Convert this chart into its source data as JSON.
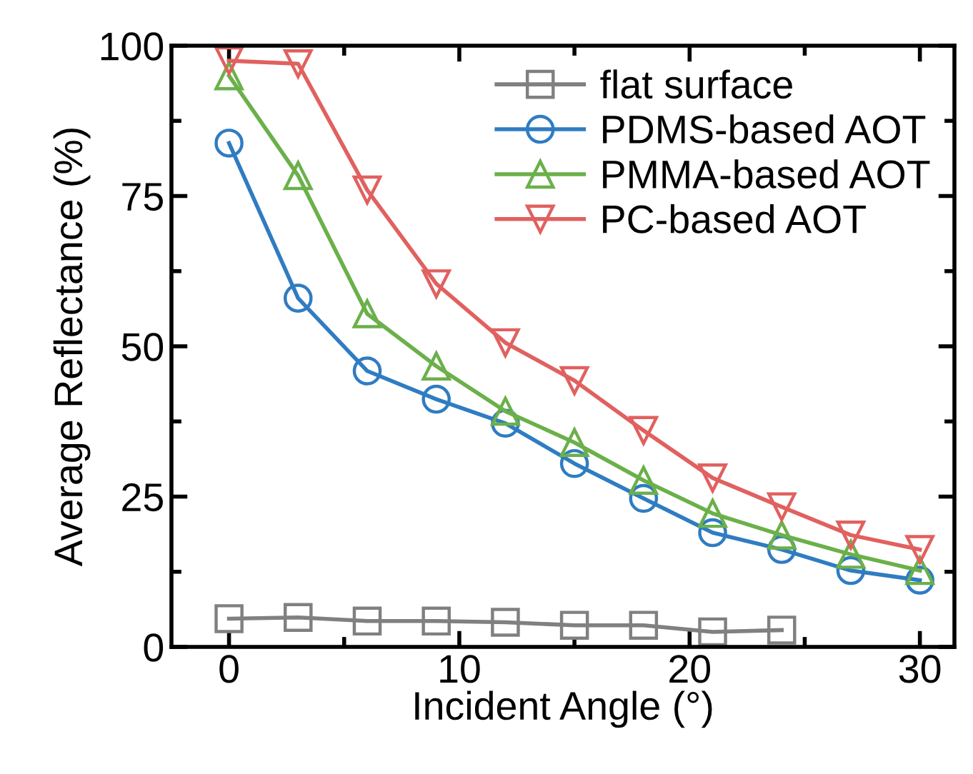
{
  "chart_data": {
    "type": "line",
    "xlabel": "Incident Angle (°)",
    "ylabel": "Average Reflectance (%)",
    "xlim": [
      -2.5,
      31.5
    ],
    "ylim": [
      0,
      100
    ],
    "xticks": [
      0,
      10,
      20,
      30
    ],
    "yticks": [
      0,
      25,
      50,
      75,
      100
    ],
    "grid": false,
    "legend": "top right",
    "line_style": "solid",
    "series": [
      {
        "name": "flat surface",
        "color": "#808080",
        "marker": "square",
        "x": [
          0,
          3,
          6,
          9,
          12,
          15,
          18,
          21,
          24
        ],
        "values": [
          4.7,
          4.9,
          4.3,
          4.3,
          4.1,
          3.6,
          3.6,
          2.5,
          2.8
        ]
      },
      {
        "name": "PDMS-based AOT",
        "color": "#2f7cc2",
        "marker": "circle",
        "x": [
          0,
          3,
          6,
          9,
          12,
          15,
          18,
          21,
          24,
          27,
          30
        ],
        "values": [
          83.8,
          58.0,
          45.9,
          41.2,
          37.2,
          30.5,
          24.7,
          19.0,
          16.2,
          12.7,
          11.1
        ]
      },
      {
        "name": "PMMA-based AOT",
        "color": "#6bb04a",
        "marker": "triangle",
        "x": [
          0,
          3,
          6,
          9,
          12,
          15,
          18,
          21,
          24,
          27,
          30
        ],
        "values": [
          95.0,
          78.4,
          55.4,
          46.7,
          39.2,
          34.0,
          27.7,
          22.2,
          18.6,
          15.4,
          12.7
        ]
      },
      {
        "name": "PC-based AOT",
        "color": "#e0615f",
        "marker": "triangle_down",
        "x": [
          0,
          3,
          6,
          9,
          12,
          15,
          18,
          21,
          24,
          27,
          30
        ],
        "values": [
          97.5,
          97.0,
          76.0,
          60.4,
          50.6,
          44.3,
          36.0,
          28.1,
          23.3,
          18.6,
          16.2
        ]
      }
    ]
  }
}
